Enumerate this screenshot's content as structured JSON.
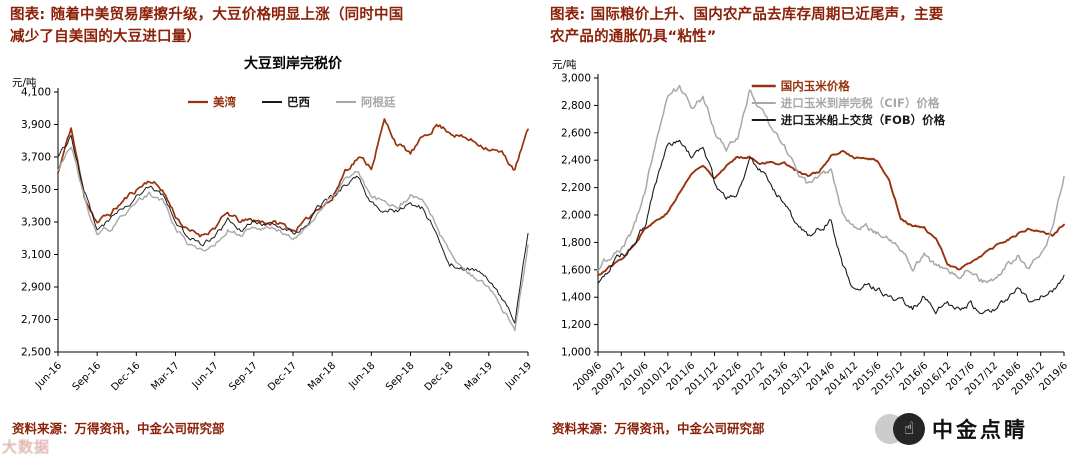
{
  "left": {
    "header": "图表: 随着中美贸易摩擦升级，大豆价格明显上涨（同时中国减少了自美国的大豆进口量）",
    "source": "资料来源：万得资讯，中金公司研究部"
  },
  "right": {
    "header": "图表: 国际粮价上升、国内农产品去库存周期已近尾声，主要农产品的通胀仍具“粘性”",
    "source": "资料来源：万得资讯，中金公司研究部"
  },
  "watermarks": {
    "logo_text": "中金点睛",
    "hand_icon": "pointing-hand-icon",
    "corner_text": "大数据"
  },
  "colors": {
    "accent_red_text": "#8C2109",
    "series_red": "#96330E",
    "series_black": "#1A1A1A",
    "series_gray": "#A8A8A8",
    "logo_dark": "#262626"
  },
  "chart_data": [
    {
      "type": "line",
      "title": "大豆到岸完税价",
      "ylabel": "元/吨",
      "ylim": [
        2500,
        4100
      ],
      "ytick_step": 200,
      "grid": false,
      "frequency": "monthly (Jun-16 to Jun-19)",
      "legend": {
        "layout": "row",
        "position": "top-center-inside"
      },
      "x_tick_labels": [
        "Jun-16",
        "Sep-16",
        "Dec-16",
        "Mar-17",
        "Jun-17",
        "Sep-17",
        "Dec-17",
        "Mar-18",
        "Jun-18",
        "Sep-18",
        "Dec-18",
        "Mar-19",
        "Jun-19"
      ],
      "series": [
        {
          "name": "美湾",
          "color": "#96330E",
          "w": 1.7,
          "n": 1,
          "values": [
            3600,
            3880,
            3460,
            3300,
            3350,
            3430,
            3500,
            3560,
            3500,
            3340,
            3240,
            3220,
            3270,
            3350,
            3300,
            3310,
            3300,
            3290,
            3250,
            3300,
            3400,
            3440,
            3620,
            3700,
            3640,
            3920,
            3780,
            3720,
            3820,
            3900,
            3860,
            3820,
            3790,
            3760,
            3720,
            3620,
            3870
          ]
        },
        {
          "name": "巴西",
          "color": "#1A1A1A",
          "w": 1.0,
          "n": 1,
          "values": [
            3700,
            3830,
            3500,
            3270,
            3310,
            3390,
            3460,
            3520,
            3470,
            3300,
            3200,
            3160,
            3210,
            3310,
            3260,
            3300,
            3290,
            3280,
            3230,
            3290,
            3390,
            3460,
            3530,
            3570,
            3420,
            3380,
            3370,
            3420,
            3380,
            3230,
            3060,
            3010,
            3000,
            2950,
            2820,
            2680,
            3230
          ]
        },
        {
          "name": "阿根廷",
          "color": "#A8A8A8",
          "w": 1.4,
          "n": 1,
          "values": [
            3620,
            3780,
            3460,
            3220,
            3260,
            3340,
            3420,
            3470,
            3430,
            3270,
            3160,
            3120,
            3170,
            3270,
            3220,
            3270,
            3260,
            3250,
            3200,
            3260,
            3360,
            3450,
            3550,
            3610,
            3460,
            3420,
            3410,
            3460,
            3420,
            3270,
            3100,
            3000,
            2950,
            2890,
            2760,
            2650,
            3160
          ]
        }
      ]
    },
    {
      "type": "line",
      "title": "",
      "ylabel": "元/吨",
      "ylim": [
        1000,
        3000
      ],
      "ytick_step": 200,
      "grid": false,
      "frequency": "quarterly (2009/6 to 2019/6)",
      "legend": {
        "layout": "column",
        "position": "top-right-inside",
        "x_frac": 0.33
      },
      "x_tick_labels": [
        "2009/6",
        "2009/12",
        "2010/6",
        "2010/12",
        "2011/6",
        "2011/12",
        "2012/6",
        "2012/12",
        "2013/6",
        "2013/12",
        "2014/6",
        "2014/12",
        "2015/6",
        "2015/12",
        "2016/6",
        "2016/12",
        "2017/6",
        "2017/12",
        "2018/6",
        "2018/12",
        "2019/6"
      ],
      "series": [
        {
          "name": "国内玉米价格",
          "color": "#96330E",
          "w": 1.9,
          "n": 0.45,
          "values": [
            1560,
            1620,
            1680,
            1780,
            1900,
            1960,
            2020,
            2160,
            2300,
            2360,
            2280,
            2360,
            2420,
            2430,
            2380,
            2380,
            2380,
            2330,
            2280,
            2320,
            2420,
            2460,
            2420,
            2410,
            2400,
            2250,
            1980,
            1920,
            1900,
            1820,
            1650,
            1600,
            1660,
            1710,
            1760,
            1810,
            1860,
            1900,
            1880,
            1850,
            1930
          ]
        },
        {
          "name": "进口玉米到岸完税（CIF）价格",
          "color": "#A8A8A8",
          "w": 1.5,
          "n": 1.1,
          "values": [
            1600,
            1700,
            1760,
            1880,
            2150,
            2550,
            2900,
            2930,
            2800,
            2870,
            2620,
            2500,
            2560,
            2900,
            2760,
            2620,
            2520,
            2320,
            2220,
            2260,
            2320,
            2020,
            1900,
            1910,
            1870,
            1820,
            1720,
            1620,
            1700,
            1620,
            1610,
            1560,
            1610,
            1520,
            1520,
            1610,
            1700,
            1610,
            1700,
            1900,
            2280
          ]
        },
        {
          "name": "进口玉米船上交货（FOB）价格",
          "color": "#1A1A1A",
          "w": 1.1,
          "n": 1.1,
          "values": [
            1500,
            1610,
            1700,
            1760,
            1920,
            2230,
            2520,
            2560,
            2420,
            2520,
            2230,
            2120,
            2160,
            2420,
            2320,
            2180,
            2100,
            1920,
            1860,
            1900,
            1960,
            1620,
            1460,
            1510,
            1460,
            1420,
            1380,
            1330,
            1410,
            1310,
            1360,
            1310,
            1360,
            1270,
            1310,
            1360,
            1460,
            1360,
            1410,
            1460,
            1560
          ]
        }
      ]
    }
  ]
}
